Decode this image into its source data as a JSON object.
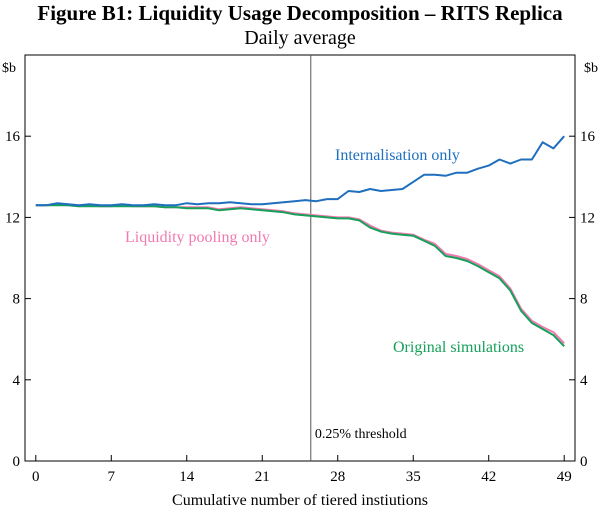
{
  "chart_data": {
    "type": "line",
    "title": "Figure B1: Liquidity Usage Decomposition – RITS Replica",
    "subtitle": "Daily average",
    "xlabel": "Cumulative number of tiered instiutions",
    "y_unit_left": "$b",
    "y_unit_right": "$b",
    "xlim": [
      -1,
      50
    ],
    "ylim": [
      0,
      20
    ],
    "x_ticks": [
      0,
      7,
      14,
      21,
      28,
      35,
      42,
      49
    ],
    "y_ticks": [
      0,
      4,
      8,
      12,
      16
    ],
    "grid": false,
    "annotation": {
      "x": 25.5,
      "label": "0.25% threshold"
    },
    "x": [
      0,
      1,
      2,
      3,
      4,
      5,
      6,
      7,
      8,
      9,
      10,
      11,
      12,
      13,
      14,
      15,
      16,
      17,
      18,
      19,
      20,
      21,
      22,
      23,
      24,
      25,
      26,
      27,
      28,
      29,
      30,
      31,
      32,
      33,
      34,
      35,
      36,
      37,
      38,
      39,
      40,
      41,
      42,
      43,
      44,
      45,
      46,
      47,
      48,
      49
    ],
    "series": [
      {
        "name": "Internalisation only",
        "color": "#1f6fbf",
        "values": [
          12.6,
          12.6,
          12.7,
          12.65,
          12.6,
          12.65,
          12.6,
          12.6,
          12.65,
          12.6,
          12.6,
          12.65,
          12.6,
          12.6,
          12.7,
          12.65,
          12.7,
          12.7,
          12.75,
          12.7,
          12.65,
          12.65,
          12.7,
          12.75,
          12.8,
          12.85,
          12.8,
          12.9,
          12.9,
          13.3,
          13.25,
          13.4,
          13.3,
          13.35,
          13.4,
          13.75,
          14.1,
          14.1,
          14.05,
          14.2,
          14.2,
          14.4,
          14.55,
          14.85,
          14.65,
          14.85,
          14.85,
          15.7,
          15.4,
          16.0
        ]
      },
      {
        "name": "Liquidity pooling only",
        "color": "#f07ab0",
        "values": [
          12.6,
          12.6,
          12.65,
          12.6,
          12.55,
          12.6,
          12.55,
          12.55,
          12.6,
          12.55,
          12.55,
          12.55,
          12.5,
          12.5,
          12.5,
          12.5,
          12.5,
          12.4,
          12.45,
          12.5,
          12.45,
          12.4,
          12.35,
          12.3,
          12.2,
          12.15,
          12.1,
          12.05,
          12.0,
          12.0,
          11.9,
          11.6,
          11.35,
          11.25,
          11.2,
          11.15,
          10.9,
          10.7,
          10.2,
          10.1,
          9.95,
          9.7,
          9.4,
          9.1,
          8.5,
          7.5,
          6.9,
          6.6,
          6.35,
          5.8
        ]
      },
      {
        "name": "Original simulations",
        "color": "#16a05a",
        "values": [
          12.6,
          12.6,
          12.6,
          12.6,
          12.55,
          12.55,
          12.55,
          12.55,
          12.55,
          12.55,
          12.55,
          12.55,
          12.5,
          12.5,
          12.45,
          12.45,
          12.45,
          12.35,
          12.4,
          12.45,
          12.4,
          12.35,
          12.3,
          12.25,
          12.15,
          12.1,
          12.05,
          12.0,
          11.95,
          11.95,
          11.85,
          11.5,
          11.3,
          11.2,
          11.15,
          11.1,
          10.85,
          10.6,
          10.1,
          10.0,
          9.85,
          9.6,
          9.3,
          9.0,
          8.4,
          7.4,
          6.8,
          6.5,
          6.2,
          5.65
        ]
      }
    ]
  }
}
